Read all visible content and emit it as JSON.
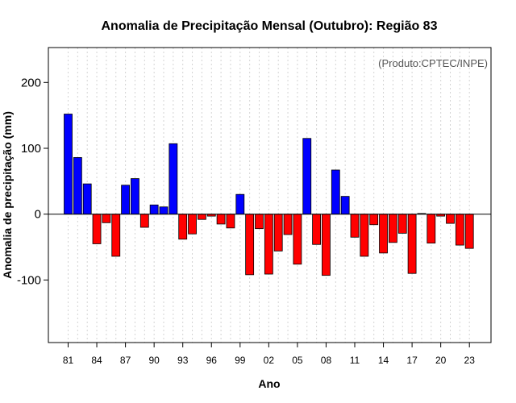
{
  "chart_data": {
    "type": "bar",
    "title": "Anomalia de Precipitação Mensal (Outubro): Região 83",
    "xlabel": "Ano",
    "ylabel": "Anomalia de precipitação (mm)",
    "annotation": "(Produto:CPTEC/INPE)",
    "ylim": [
      -195,
      253
    ],
    "yticks": [
      -100,
      0,
      100,
      200
    ],
    "ytick_labels": [
      "-100",
      "0",
      "100",
      "200"
    ],
    "xtick_labels": [
      "81",
      "84",
      "87",
      "90",
      "93",
      "96",
      "99",
      "02",
      "05",
      "08",
      "11",
      "14",
      "17",
      "20",
      "23"
    ],
    "xtick_years": [
      1981,
      1984,
      1987,
      1990,
      1993,
      1996,
      1999,
      2002,
      2005,
      2008,
      2011,
      2014,
      2017,
      2020,
      2023
    ],
    "grid": true,
    "colors": {
      "positive": "#0000ff",
      "negative": "#ff0000",
      "edge": "#000000",
      "grid": "#d3d3d3"
    },
    "categories": [
      1981,
      1982,
      1983,
      1984,
      1985,
      1986,
      1987,
      1988,
      1989,
      1990,
      1991,
      1992,
      1993,
      1994,
      1995,
      1996,
      1997,
      1998,
      1999,
      2000,
      2001,
      2002,
      2003,
      2004,
      2005,
      2006,
      2007,
      2008,
      2009,
      2010,
      2011,
      2012,
      2013,
      2014,
      2015,
      2016,
      2017,
      2018,
      2019,
      2020,
      2021,
      2022,
      2023
    ],
    "values": [
      152,
      86,
      46,
      -45,
      -13,
      -64,
      44,
      54,
      -20,
      14,
      11,
      107,
      -38,
      -30,
      -8,
      -3,
      -15,
      -21,
      30,
      -92,
      -22,
      -91,
      -56,
      -31,
      -76,
      115,
      -46,
      -93,
      67,
      27,
      -35,
      -64,
      -16,
      -59,
      -43,
      -29,
      -90,
      1,
      -44,
      -3,
      -14,
      -47,
      -52
    ]
  }
}
